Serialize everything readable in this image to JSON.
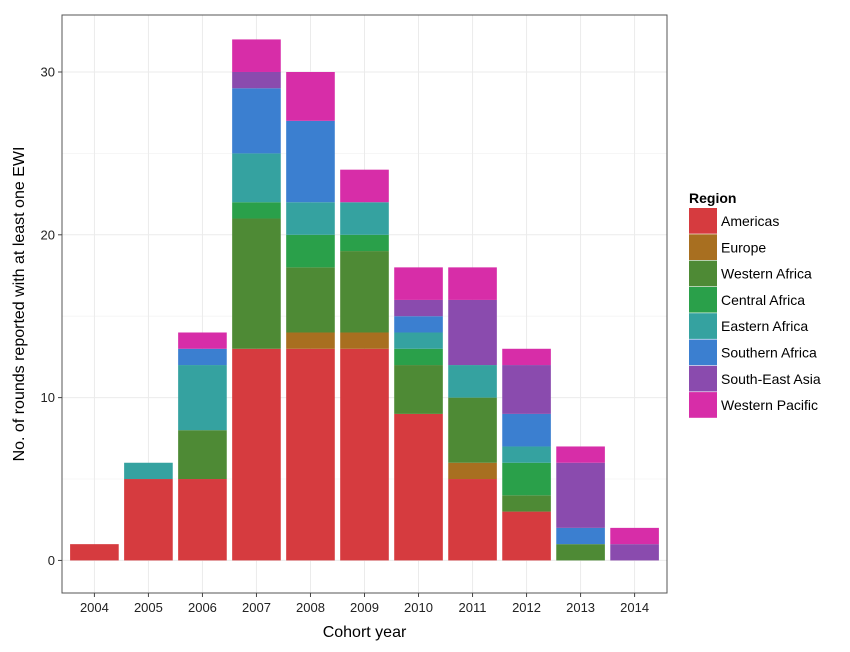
{
  "chart_data": {
    "type": "bar",
    "stacked": true,
    "title": "",
    "xlabel": "Cohort year",
    "ylabel": "No. of rounds reported with at least one EWI",
    "categories": [
      "2004",
      "2005",
      "2006",
      "2007",
      "2008",
      "2009",
      "2010",
      "2011",
      "2012",
      "2013",
      "2014"
    ],
    "yticks": [
      "0",
      "10",
      "20",
      "30"
    ],
    "ylim": [
      -2,
      33.5
    ],
    "grid": true,
    "legend": {
      "title": "Region",
      "position": "right"
    },
    "series": [
      {
        "name": "Americas",
        "color": "#D63B3F",
        "values": [
          1,
          5,
          5,
          13,
          13,
          13,
          9,
          5,
          3,
          0,
          0
        ]
      },
      {
        "name": "Europe",
        "color": "#A86F20",
        "values": [
          0,
          0,
          0,
          0,
          1,
          1,
          0,
          1,
          0,
          0,
          0
        ]
      },
      {
        "name": "Western Africa",
        "color": "#4E8A35",
        "values": [
          0,
          0,
          3,
          8,
          4,
          5,
          3,
          4,
          1,
          1,
          0
        ]
      },
      {
        "name": "Central Africa",
        "color": "#2AA04A",
        "values": [
          0,
          0,
          0,
          1,
          2,
          1,
          1,
          0,
          2,
          0,
          0
        ]
      },
      {
        "name": "Eastern Africa",
        "color": "#35A2A0",
        "values": [
          0,
          1,
          4,
          3,
          2,
          2,
          1,
          2,
          1,
          0,
          0
        ]
      },
      {
        "name": "Southern Africa",
        "color": "#3B7FD0",
        "values": [
          0,
          0,
          1,
          4,
          5,
          0,
          1,
          0,
          2,
          1,
          0
        ]
      },
      {
        "name": "South-East Asia",
        "color": "#8A4BAE",
        "values": [
          0,
          0,
          0,
          1,
          0,
          0,
          1,
          4,
          3,
          4,
          1
        ]
      },
      {
        "name": "Western Pacific",
        "color": "#D72DA8",
        "values": [
          0,
          0,
          1,
          2,
          3,
          2,
          2,
          2,
          1,
          1,
          1
        ]
      }
    ]
  }
}
